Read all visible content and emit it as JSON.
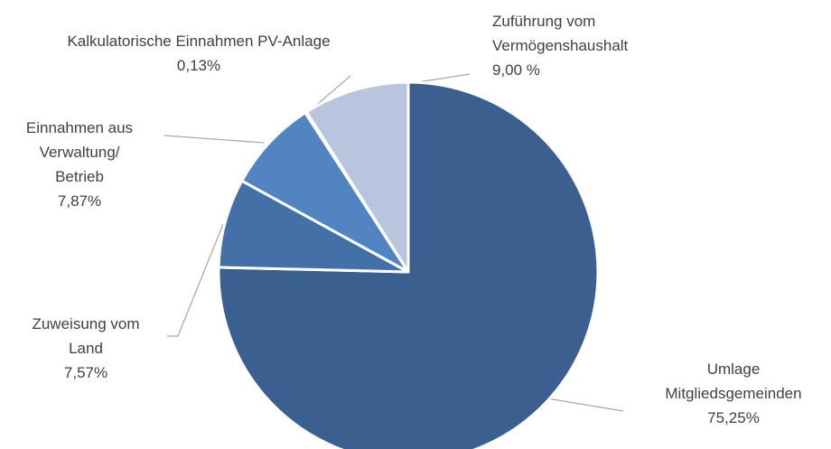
{
  "chart_data": {
    "type": "pie",
    "categories": [
      [
        "Umlage",
        "Mitgliedsgemeinden"
      ],
      [
        "Zuweisung vom",
        "Land"
      ],
      [
        "Einnahmen aus",
        "Verwaltung/",
        "Betrieb"
      ],
      [
        "Kalkulatorische Einnahmen PV-Anlage"
      ],
      [
        "Zuführung vom",
        "Vermögenshaushalt"
      ]
    ],
    "values": [
      75.25,
      7.57,
      7.87,
      0.13,
      9.0
    ],
    "value_labels": [
      "75,25%",
      "7,57%",
      "7,87%",
      "0,13%",
      "9,00 %"
    ],
    "colors": [
      "#3b5f8e",
      "#4371a7",
      "#5384c2",
      "#4f7fbf",
      "#b9c5df"
    ]
  }
}
